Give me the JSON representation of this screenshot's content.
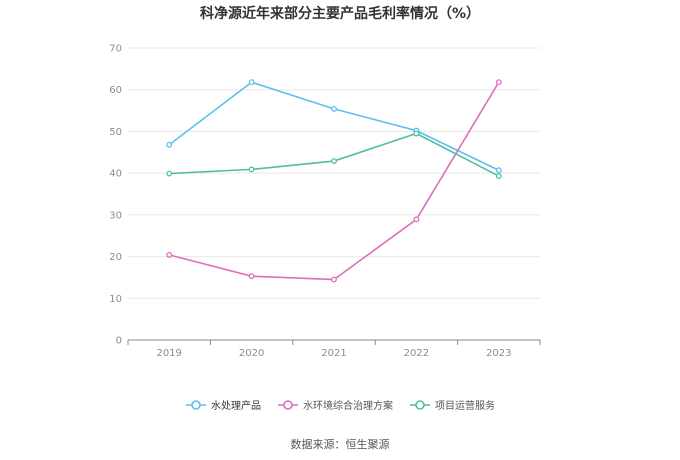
{
  "title": "科净源近年来部分主要产品毛利率情况（%）",
  "source": "数据来源：恒生聚源",
  "chart_data": {
    "type": "line",
    "x": [
      "2019",
      "2020",
      "2021",
      "2022",
      "2023"
    ],
    "ylim": [
      0,
      70
    ],
    "yticks": [
      0,
      10,
      20,
      30,
      40,
      50,
      60,
      70
    ],
    "grid": true,
    "legend_position": "bottom-center",
    "series": [
      {
        "name": "水处理产品",
        "color": "#5bc0eb",
        "values": [
          46.8,
          61.8,
          55.4,
          50.2,
          40.7
        ]
      },
      {
        "name": "水环境综合治理方案",
        "color": "#dd6fb8",
        "values": [
          20.4,
          15.3,
          14.5,
          28.9,
          61.8
        ]
      },
      {
        "name": "项目运营服务",
        "color": "#4fbf9f",
        "values": [
          39.9,
          40.9,
          42.9,
          49.5,
          39.3
        ]
      }
    ]
  }
}
